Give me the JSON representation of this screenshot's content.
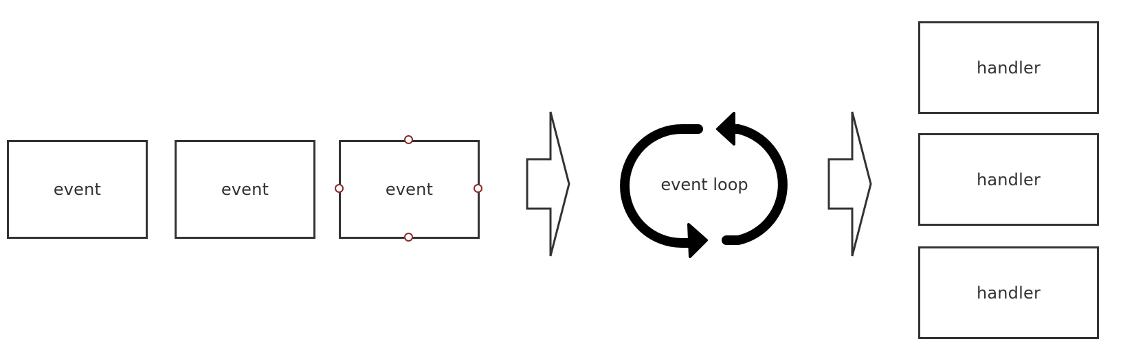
{
  "events": [
    {
      "label": "event"
    },
    {
      "label": "event"
    },
    {
      "label": "event"
    }
  ],
  "loop": {
    "label": "event loop"
  },
  "handlers": [
    {
      "label": "handler"
    },
    {
      "label": "handler"
    },
    {
      "label": "handler"
    }
  ],
  "colors": {
    "stroke": "#333333",
    "loop_arrow": "#000000",
    "selection_handle": "#8b2a2a",
    "background": "#ffffff"
  },
  "icons": {
    "flow_arrow": "right-arrow-icon",
    "loop": "cycle-arrows-icon",
    "selection": "resize-handle-icon"
  }
}
